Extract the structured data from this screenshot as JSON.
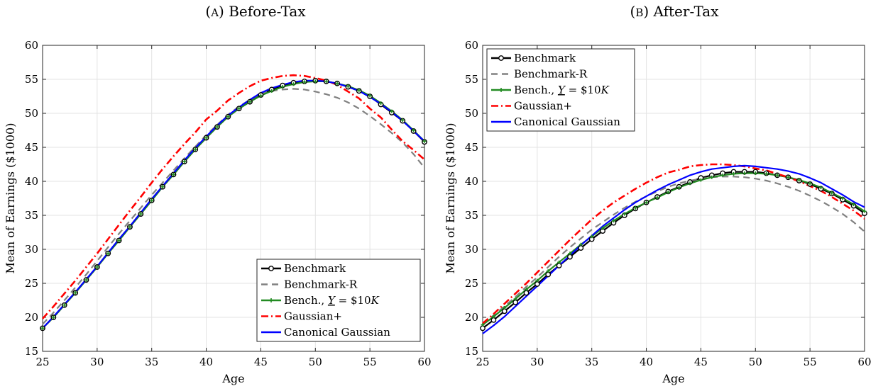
{
  "panels": [
    {
      "letter": "A",
      "title": "Before-Tax"
    },
    {
      "letter": "B",
      "title": "After-Tax"
    }
  ],
  "chart_data": [
    {
      "type": "line",
      "title": "(A) Before-Tax",
      "xlabel": "Age",
      "ylabel": "Mean of Earnings ($1000)",
      "xlim": [
        25,
        60
      ],
      "ylim": [
        15,
        60
      ],
      "xticks": [
        25,
        30,
        35,
        40,
        45,
        50,
        55,
        60
      ],
      "yticks": [
        15,
        20,
        25,
        30,
        35,
        40,
        45,
        50,
        55,
        60
      ],
      "grid": true,
      "legend": "bottom-right",
      "x": [
        25,
        26,
        27,
        28,
        29,
        30,
        31,
        32,
        33,
        34,
        35,
        36,
        37,
        38,
        39,
        40,
        41,
        42,
        43,
        44,
        45,
        46,
        47,
        48,
        49,
        50,
        51,
        52,
        53,
        54,
        55,
        56,
        57,
        58,
        59,
        60
      ],
      "series": [
        {
          "name": "Benchmark",
          "color": "#000000",
          "style": "solid-circle",
          "values": [
            18.4,
            20.0,
            21.8,
            23.6,
            25.5,
            27.4,
            29.4,
            31.3,
            33.3,
            35.2,
            37.2,
            39.2,
            41.0,
            42.9,
            44.7,
            46.4,
            48.0,
            49.5,
            50.7,
            51.7,
            52.7,
            53.5,
            54.1,
            54.5,
            54.7,
            54.8,
            54.7,
            54.4,
            53.9,
            53.3,
            52.5,
            51.3,
            50.1,
            48.9,
            47.4,
            45.8
          ]
        },
        {
          "name": "Benchmark-R",
          "color": "#808080",
          "style": "dashed",
          "values": [
            19.0,
            20.7,
            22.5,
            24.4,
            26.3,
            28.3,
            30.3,
            32.3,
            34.2,
            36.1,
            38.0,
            39.8,
            41.6,
            43.4,
            45.1,
            46.8,
            48.3,
            49.8,
            51.0,
            52.0,
            52.9,
            53.3,
            53.5,
            53.6,
            53.5,
            53.2,
            52.8,
            52.3,
            51.6,
            50.7,
            49.6,
            48.4,
            47.1,
            45.7,
            44.0,
            42.0
          ]
        },
        {
          "name": "Bench., Y = $10K",
          "color": "#228B22",
          "style": "solid-plus",
          "values": [
            18.4,
            20.0,
            21.8,
            23.6,
            25.5,
            27.4,
            29.4,
            31.3,
            33.3,
            35.2,
            37.2,
            39.2,
            41.0,
            42.9,
            44.7,
            46.4,
            48.0,
            49.5,
            50.7,
            51.7,
            52.6,
            53.3,
            53.9,
            54.3,
            54.6,
            54.7,
            54.7,
            54.4,
            54.0,
            53.4,
            52.6,
            51.5,
            50.3,
            49.0,
            47.5,
            45.9
          ]
        },
        {
          "name": "Gaussian+",
          "color": "#ff0000",
          "style": "dashdot",
          "values": [
            19.8,
            21.6,
            23.5,
            25.4,
            27.4,
            29.4,
            31.5,
            33.6,
            35.7,
            37.7,
            39.8,
            41.8,
            43.7,
            45.5,
            47.2,
            49.1,
            50.4,
            51.9,
            53.0,
            54.0,
            54.8,
            55.2,
            55.5,
            55.6,
            55.5,
            55.2,
            54.8,
            54.2,
            53.2,
            52.2,
            50.7,
            49.4,
            47.6,
            45.9,
            44.6,
            43.2
          ]
        },
        {
          "name": "Canonical Gaussian",
          "color": "#0000ff",
          "style": "solid",
          "values": [
            18.4,
            20.1,
            21.9,
            23.7,
            25.6,
            27.5,
            29.5,
            31.5,
            33.4,
            35.4,
            37.4,
            39.3,
            41.2,
            43.1,
            44.9,
            46.6,
            48.2,
            49.7,
            50.9,
            52.0,
            53.0,
            53.7,
            54.2,
            54.6,
            54.8,
            54.8,
            54.7,
            54.4,
            53.9,
            53.3,
            52.4,
            51.4,
            50.2,
            48.9,
            47.4,
            45.9
          ]
        }
      ]
    },
    {
      "type": "line",
      "title": "(B) After-Tax",
      "xlabel": "Age",
      "ylabel": "Mean of Earnings ($1000)",
      "xlim": [
        25,
        60
      ],
      "ylim": [
        15,
        60
      ],
      "xticks": [
        25,
        30,
        35,
        40,
        45,
        50,
        55,
        60
      ],
      "yticks": [
        15,
        20,
        25,
        30,
        35,
        40,
        45,
        50,
        55,
        60
      ],
      "grid": true,
      "legend": "top-left",
      "x": [
        25,
        26,
        27,
        28,
        29,
        30,
        31,
        32,
        33,
        34,
        35,
        36,
        37,
        38,
        39,
        40,
        41,
        42,
        43,
        44,
        45,
        46,
        47,
        48,
        49,
        50,
        51,
        52,
        53,
        54,
        55,
        56,
        57,
        58,
        59,
        60
      ],
      "series": [
        {
          "name": "Benchmark",
          "color": "#000000",
          "style": "solid-circle",
          "values": [
            18.4,
            19.6,
            20.9,
            22.2,
            23.6,
            24.9,
            26.3,
            27.6,
            28.9,
            30.2,
            31.5,
            32.7,
            33.9,
            35.0,
            36.0,
            36.9,
            37.7,
            38.5,
            39.2,
            39.9,
            40.5,
            40.9,
            41.2,
            41.4,
            41.4,
            41.4,
            41.2,
            40.9,
            40.6,
            40.1,
            39.6,
            38.9,
            38.2,
            37.3,
            36.4,
            35.3
          ]
        },
        {
          "name": "Benchmark-R",
          "color": "#808080",
          "style": "dashed",
          "values": [
            19.0,
            20.3,
            21.6,
            23.0,
            24.5,
            25.9,
            27.4,
            28.9,
            30.3,
            31.6,
            32.9,
            34.0,
            35.1,
            36.1,
            37.0,
            37.8,
            38.5,
            39.2,
            39.7,
            40.1,
            40.4,
            40.6,
            40.7,
            40.7,
            40.6,
            40.4,
            40.1,
            39.7,
            39.2,
            38.6,
            37.9,
            37.1,
            36.2,
            35.2,
            34.0,
            32.6
          ]
        },
        {
          "name": "Bench., Y = $10K",
          "color": "#228B22",
          "style": "solid-plus",
          "values": [
            18.9,
            20.1,
            21.4,
            22.7,
            24.1,
            25.4,
            26.8,
            28.1,
            29.4,
            30.7,
            31.9,
            33.1,
            34.2,
            35.2,
            36.1,
            36.9,
            37.6,
            38.4,
            39.1,
            39.7,
            40.2,
            40.6,
            40.9,
            41.1,
            41.2,
            41.2,
            41.1,
            40.9,
            40.6,
            40.2,
            39.7,
            39.1,
            38.3,
            37.5,
            36.6,
            35.6
          ]
        },
        {
          "name": "Gaussian+",
          "color": "#ff0000",
          "style": "dashdot",
          "values": [
            19.1,
            20.5,
            22.0,
            23.5,
            25.0,
            26.6,
            28.2,
            29.8,
            31.4,
            32.9,
            34.4,
            35.7,
            36.9,
            37.9,
            38.9,
            39.8,
            40.6,
            41.3,
            41.7,
            42.2,
            42.4,
            42.5,
            42.5,
            42.4,
            42.2,
            41.9,
            41.6,
            41.1,
            40.6,
            40.0,
            39.3,
            38.6,
            37.7,
            36.7,
            35.7,
            34.5
          ]
        },
        {
          "name": "Canonical Gaussian",
          "color": "#0000ff",
          "style": "solid",
          "values": [
            17.6,
            18.8,
            20.1,
            21.6,
            23.1,
            24.6,
            26.1,
            27.6,
            29.1,
            30.6,
            32.0,
            33.4,
            34.6,
            35.8,
            36.9,
            37.8,
            38.7,
            39.5,
            40.2,
            40.9,
            41.4,
            41.8,
            42.0,
            42.2,
            42.3,
            42.2,
            42.0,
            41.8,
            41.5,
            41.1,
            40.5,
            39.8,
            38.9,
            38.0,
            37.0,
            36.2
          ]
        }
      ]
    }
  ]
}
